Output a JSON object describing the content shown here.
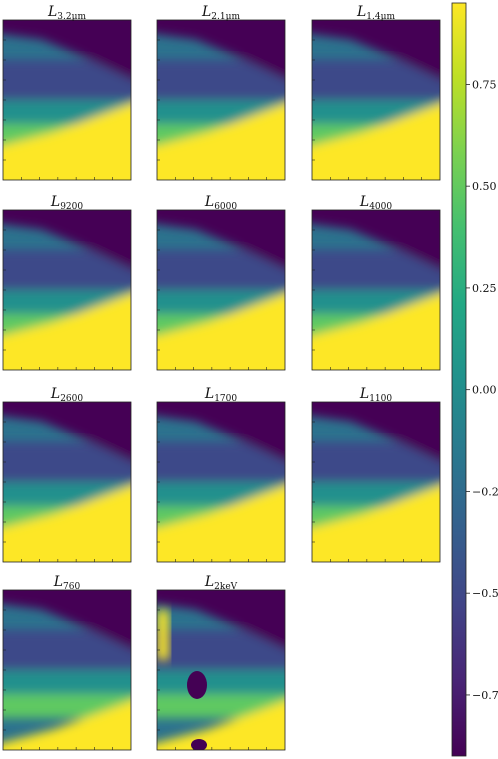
{
  "chart_data": {
    "type": "heatmap",
    "colormap": "viridis",
    "panels": [
      {
        "title_base": "L",
        "title_sub": "3.2μm"
      },
      {
        "title_base": "L",
        "title_sub": "2.1μm"
      },
      {
        "title_base": "L",
        "title_sub": "1.4μm"
      },
      {
        "title_base": "L",
        "title_sub": "9200"
      },
      {
        "title_base": "L",
        "title_sub": "6000"
      },
      {
        "title_base": "L",
        "title_sub": "4000"
      },
      {
        "title_base": "L",
        "title_sub": "2600"
      },
      {
        "title_base": "L",
        "title_sub": "1700"
      },
      {
        "title_base": "L",
        "title_sub": "1100"
      },
      {
        "title_base": "L",
        "title_sub": "760"
      },
      {
        "title_base": "L",
        "title_sub": "2keV"
      }
    ],
    "colorbar": {
      "range": [
        -0.9,
        0.95
      ],
      "ticks": [
        0.75,
        0.5,
        0.25,
        0.0,
        -0.25,
        -0.5,
        -0.75
      ],
      "tick_labels": [
        "0.75",
        "0.50",
        "0.25",
        "0.00",
        "−0.25",
        "−0.50",
        "−0.75"
      ]
    }
  }
}
